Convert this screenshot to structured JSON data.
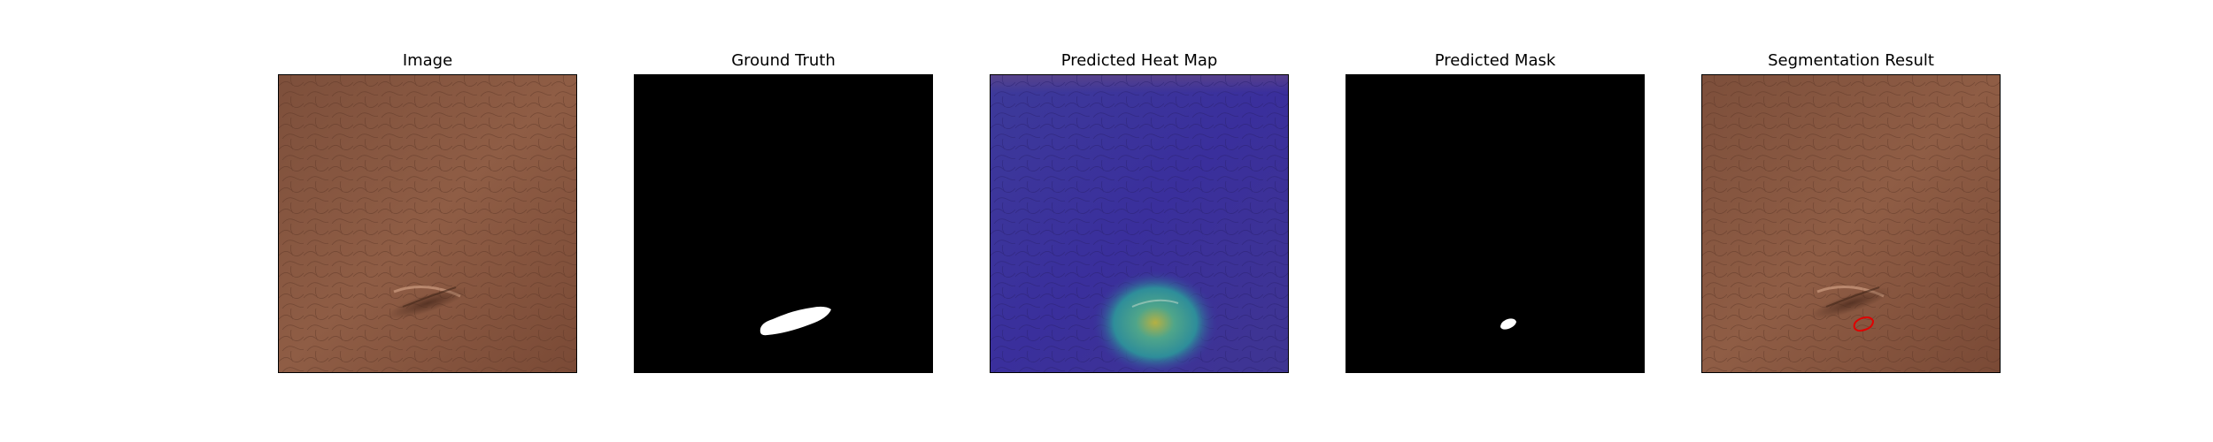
{
  "figure": {
    "panels": [
      {
        "id": "image",
        "title": "Image",
        "icon": "leather-texture-image"
      },
      {
        "id": "ground-truth",
        "title": "Ground Truth",
        "icon": "binary-mask-image"
      },
      {
        "id": "heat-map",
        "title": "Predicted Heat Map",
        "icon": "heat-map-image"
      },
      {
        "id": "predicted-mask",
        "title": "Predicted Mask",
        "icon": "binary-mask-image"
      },
      {
        "id": "segmentation",
        "title": "Segmentation Result",
        "icon": "segmentation-overlay-image"
      }
    ],
    "colors": {
      "leather": "#8a5a43",
      "mask_background": "#000000",
      "mask_foreground": "#ffffff",
      "heat_low": "#3b2f9e",
      "heat_high": "#b8b640",
      "contour": "#e00000"
    }
  }
}
